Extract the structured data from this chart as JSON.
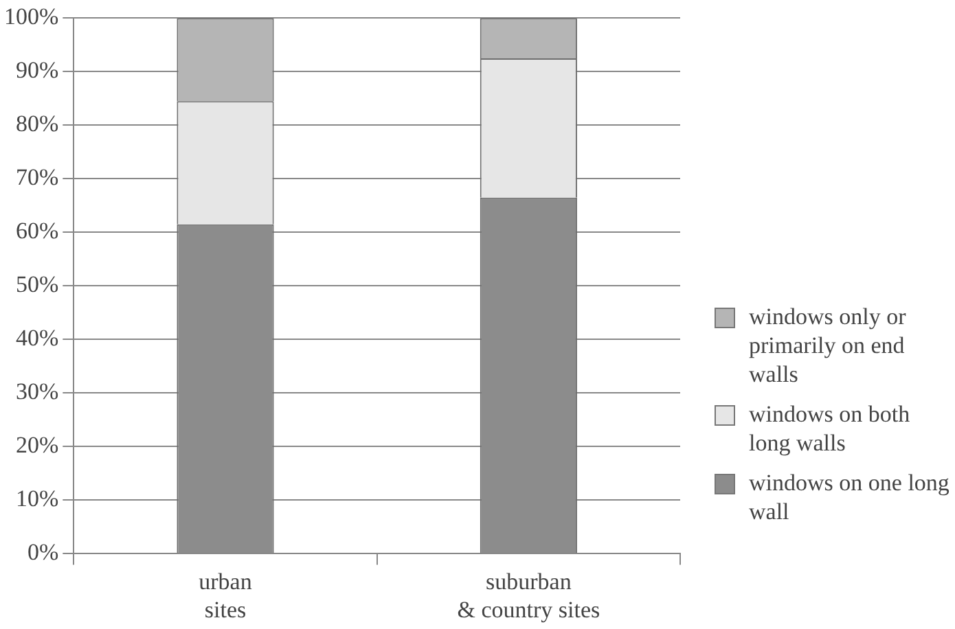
{
  "chart_data": {
    "type": "bar",
    "stacked": true,
    "categories": [
      "urban sites",
      "suburban & country sites"
    ],
    "series": [
      {
        "name": "windows on one long wall",
        "color": "#8c8c8c",
        "values": [
          61.5,
          66.5
        ]
      },
      {
        "name": "windows on both long walls",
        "color": "#e6e6e6",
        "values": [
          23,
          26
        ]
      },
      {
        "name": "windows only or primarily on end walls",
        "color": "#b5b5b5",
        "values": [
          15.5,
          7.5
        ]
      }
    ],
    "ylim": [
      0,
      100
    ],
    "yticks": [
      {
        "value": 0,
        "label": "0%"
      },
      {
        "value": 10,
        "label": "10%"
      },
      {
        "value": 20,
        "label": "20%"
      },
      {
        "value": 30,
        "label": "30%"
      },
      {
        "value": 40,
        "label": "40%"
      },
      {
        "value": 50,
        "label": "50%"
      },
      {
        "value": 60,
        "label": "60%"
      },
      {
        "value": 70,
        "label": "70%"
      },
      {
        "value": 80,
        "label": "80%"
      },
      {
        "value": 90,
        "label": "90%"
      },
      {
        "value": 100,
        "label": "100%"
      }
    ],
    "grid": "y",
    "legend": "right"
  }
}
